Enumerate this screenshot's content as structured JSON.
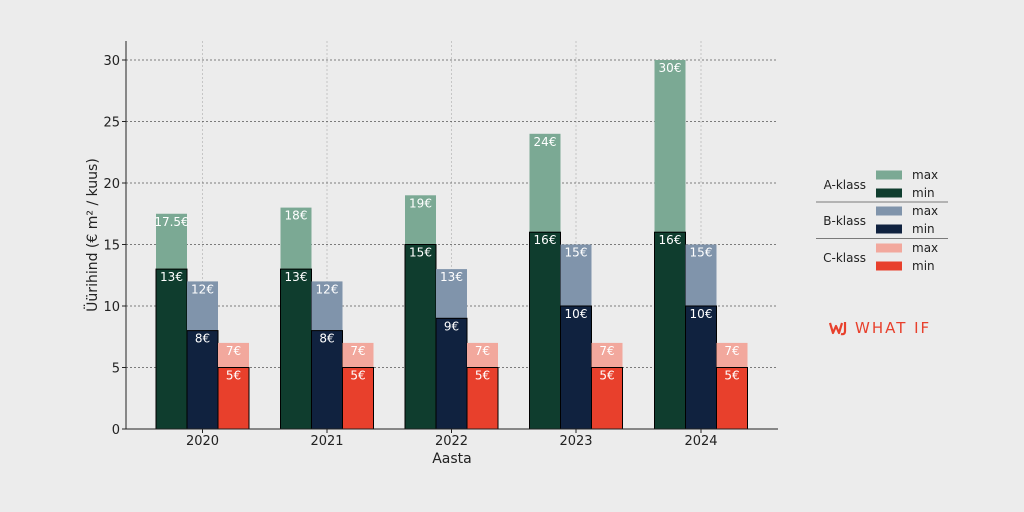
{
  "brand": {
    "logo_text": "WHAT IF",
    "color": "#e8402c"
  },
  "chart_data": {
    "type": "bar",
    "categories": [
      "2020",
      "2021",
      "2022",
      "2023",
      "2024"
    ],
    "xlabel": "Aasta",
    "ylabel": "Üürihind (€ m² / kuus)",
    "ylim": [
      0,
      31.5
    ],
    "yticks": [
      0,
      5,
      10,
      15,
      20,
      25,
      30
    ],
    "grid": true,
    "legend_position": "right",
    "value_suffix": "€",
    "groups": [
      {
        "name": "A-klass",
        "max": [
          17.5,
          18,
          19,
          24,
          30
        ],
        "min": [
          13,
          13,
          15,
          16,
          16
        ],
        "max_color": "#7ba994",
        "min_color": "#0f3d2e"
      },
      {
        "name": "B-klass",
        "max": [
          12,
          12,
          13,
          15,
          15
        ],
        "min": [
          8,
          8,
          9,
          10,
          10
        ],
        "max_color": "#8094ab",
        "min_color": "#10223f"
      },
      {
        "name": "C-klass",
        "max": [
          7,
          7,
          7,
          7,
          7
        ],
        "min": [
          5,
          5,
          5,
          5,
          5
        ],
        "max_color": "#f2a89d",
        "min_color": "#e8402c"
      }
    ],
    "legend_labels": {
      "max": "max",
      "min": "min"
    }
  }
}
